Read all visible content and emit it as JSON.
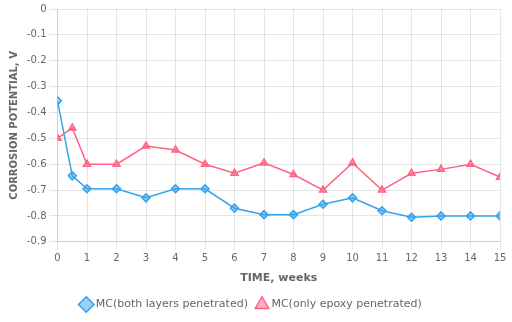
{
  "chart_data": {
    "type": "line",
    "x_label": "TIME, weeks",
    "y_label": "CORROSION POTENTIAL, V",
    "x": [
      0,
      0.5,
      1,
      2,
      3,
      4,
      5,
      6,
      7,
      8,
      9,
      10,
      11,
      12,
      13,
      14,
      15
    ],
    "series": [
      {
        "name": "MC(both layers penetrated)",
        "marker": "diamond",
        "line_style": "solid",
        "values": [
          -0.355,
          -0.645,
          -0.695,
          -0.695,
          -0.73,
          -0.695,
          -0.695,
          -0.77,
          -0.795,
          -0.795,
          -0.755,
          -0.73,
          -0.78,
          -0.805,
          -0.8,
          -0.8,
          -0.8
        ]
      },
      {
        "name": "MC(only epoxy penetrated)",
        "marker": "triangle",
        "line_style": "solid",
        "values": [
          -0.5,
          -0.46,
          -0.6,
          -0.6,
          -0.53,
          -0.545,
          -0.6,
          -0.635,
          -0.595,
          -0.64,
          -0.7,
          -0.595,
          -0.7,
          -0.635,
          -0.62,
          -0.6,
          -0.65
        ]
      }
    ],
    "xlim": [
      0,
      15
    ],
    "xticks": [
      0,
      1,
      2,
      3,
      4,
      5,
      6,
      7,
      8,
      9,
      10,
      11,
      12,
      13,
      14,
      15
    ],
    "ylim": [
      -0.9,
      0.0
    ],
    "yticks": [
      0.0,
      -0.1,
      -0.2,
      -0.3,
      -0.4,
      -0.5,
      -0.6,
      -0.7,
      -0.8,
      -0.9
    ],
    "grid": true,
    "legend": "bottom"
  }
}
